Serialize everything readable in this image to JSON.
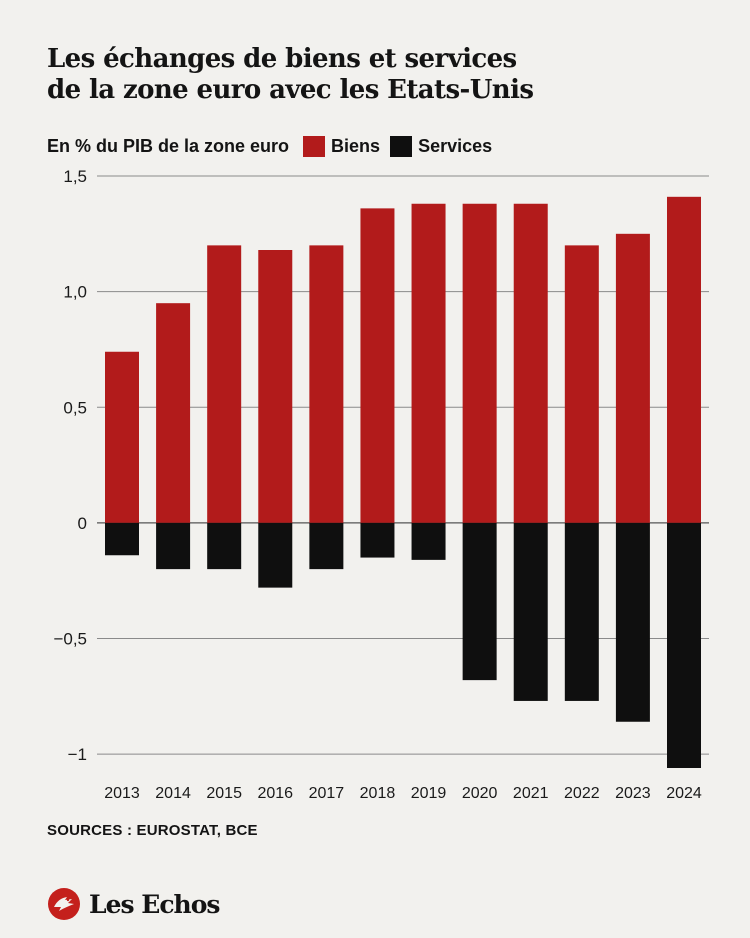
{
  "title_lines": [
    "Les échanges de biens et services",
    "de la zone euro avec les Etats-Unis"
  ],
  "unit_label": "En % du PIB de la zone euro",
  "source": "SOURCES : EUROSTAT, BCE",
  "brand": "Les Echos",
  "colors": {
    "background": "#f2f1ee",
    "biens": "#b21b1b",
    "services": "#0f0f0f",
    "grid": "#8a8a8a"
  },
  "chart_data": {
    "type": "bar",
    "title": "Les échanges de biens et services de la zone euro avec les Etats-Unis",
    "ylabel": "En % du PIB de la zone euro",
    "categories": [
      "2013",
      "2014",
      "2015",
      "2016",
      "2017",
      "2018",
      "2019",
      "2020",
      "2021",
      "2022",
      "2023",
      "2024"
    ],
    "series": [
      {
        "name": "Biens",
        "color": "#b21b1b",
        "values": [
          0.74,
          0.95,
          1.2,
          1.18,
          1.2,
          1.36,
          1.38,
          1.38,
          1.38,
          1.2,
          1.25,
          1.41
        ]
      },
      {
        "name": "Services",
        "color": "#0f0f0f",
        "values": [
          -0.14,
          -0.2,
          -0.2,
          -0.28,
          -0.2,
          -0.15,
          -0.16,
          -0.68,
          -0.77,
          -0.77,
          -0.86,
          -1.06
        ]
      }
    ],
    "ylim": [
      -1.06,
      1.5
    ],
    "yticks": [
      1.5,
      1.0,
      0.5,
      0,
      -0.5,
      -1
    ],
    "ytick_labels": [
      "1,5",
      "1,0",
      "0,5",
      "0",
      "−0,5",
      "−1"
    ],
    "grid": true,
    "legend": "top-left"
  }
}
